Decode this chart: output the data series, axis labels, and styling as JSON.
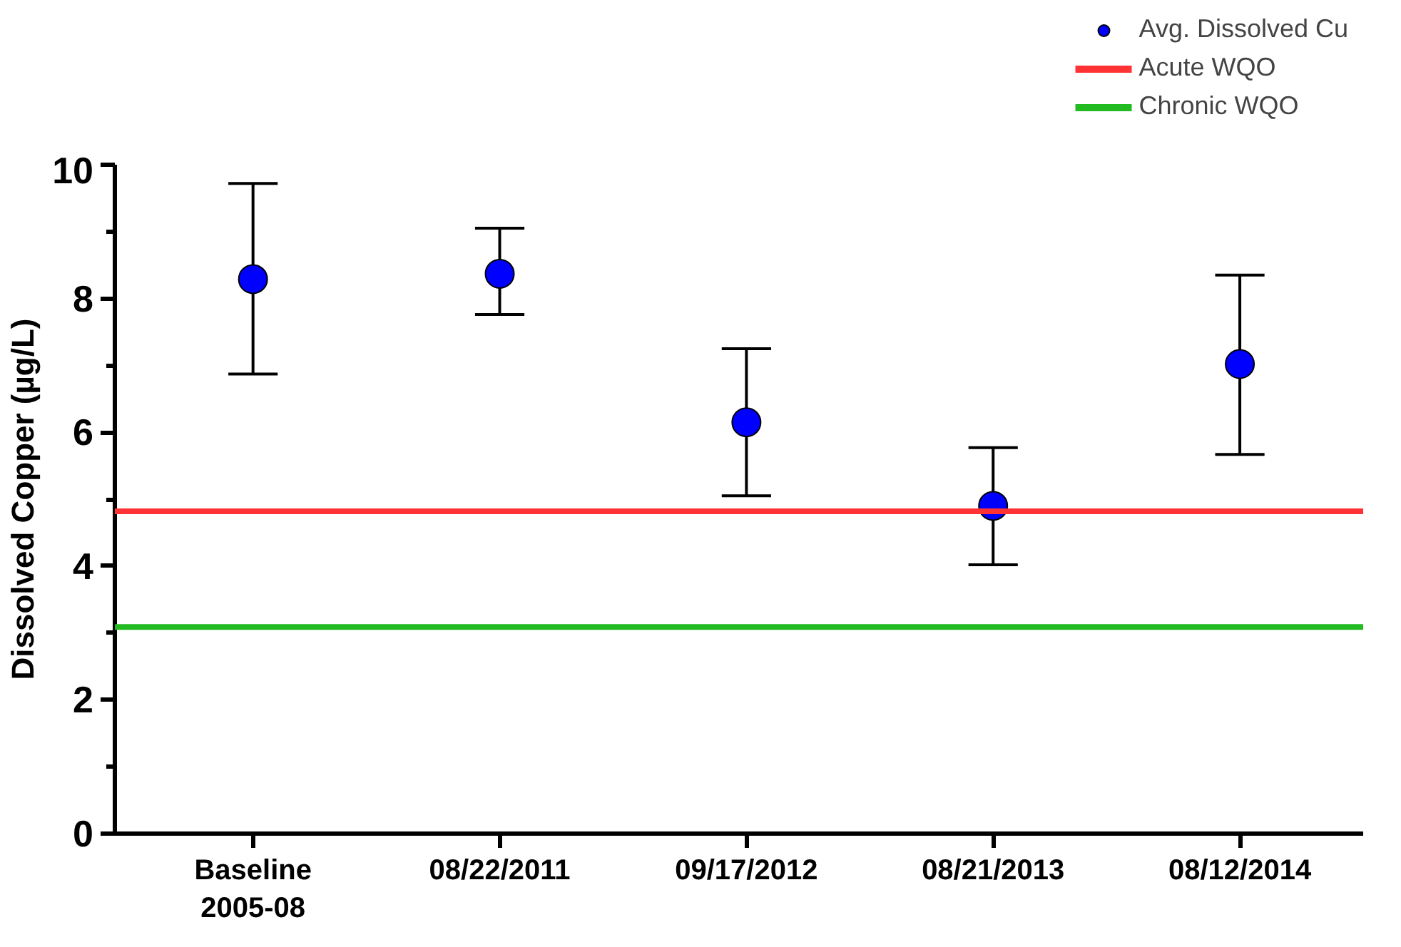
{
  "chart_data": {
    "type": "scatter",
    "ylabel": "Dissolved Copper (µg/L)",
    "categories": [
      "Baseline\n2005-08",
      "08/22/2011",
      "09/17/2012",
      "08/21/2013",
      "08/12/2014"
    ],
    "series": [
      {
        "name": "Avg. Dissolved Cu",
        "color": "#0000ff",
        "values": [
          8.29,
          8.37,
          6.15,
          4.9,
          7.02
        ],
        "errors": [
          [
            6.87,
            9.72
          ],
          [
            7.76,
            9.05
          ],
          [
            5.05,
            7.25
          ],
          [
            4.02,
            5.77
          ],
          [
            5.67,
            8.35
          ]
        ]
      }
    ],
    "ref_lines": [
      {
        "axis": "y",
        "value": 4.82,
        "label": "Acute WQO",
        "color": "#ff3333"
      },
      {
        "axis": "y",
        "value": 3.09,
        "label": "Chronic WQO",
        "color": "#22bb22"
      }
    ],
    "ylim": [
      0,
      10
    ],
    "yticks": [
      0,
      2,
      4,
      6,
      8,
      10
    ],
    "grid": false,
    "legend": "top right",
    "marker": "circle"
  }
}
